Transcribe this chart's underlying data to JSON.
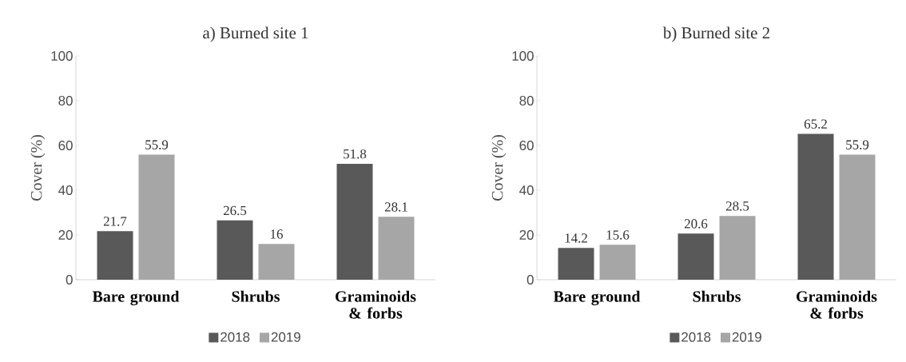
{
  "chart_data": [
    {
      "type": "bar",
      "title": "a) Burned site 1",
      "ylabel": "Cover (%)",
      "categories": [
        "Bare ground",
        "Shrubs",
        "Graminoids & forbs"
      ],
      "series": [
        {
          "name": "2018",
          "color": "#595959",
          "values": [
            21.7,
            26.5,
            51.8
          ]
        },
        {
          "name": "2019",
          "color": "#a6a6a6",
          "values": [
            55.9,
            16,
            28.1
          ]
        }
      ],
      "ylim": [
        0,
        100
      ],
      "yticks": [
        0,
        20,
        40,
        60,
        80,
        100
      ],
      "data_labels": true,
      "legend": "bottom",
      "grid": false
    },
    {
      "type": "bar",
      "title": "b) Burned site 2",
      "ylabel": "Cover (%)",
      "categories": [
        "Bare ground",
        "Shrubs",
        "Graminoids & forbs"
      ],
      "series": [
        {
          "name": "2018",
          "color": "#595959",
          "values": [
            14.2,
            20.6,
            65.2
          ]
        },
        {
          "name": "2019",
          "color": "#a6a6a6",
          "values": [
            15.6,
            28.5,
            55.9
          ]
        }
      ],
      "ylim": [
        0,
        100
      ],
      "yticks": [
        0,
        20,
        40,
        60,
        80,
        100
      ],
      "data_labels": true,
      "legend": "bottom",
      "grid": false
    }
  ]
}
